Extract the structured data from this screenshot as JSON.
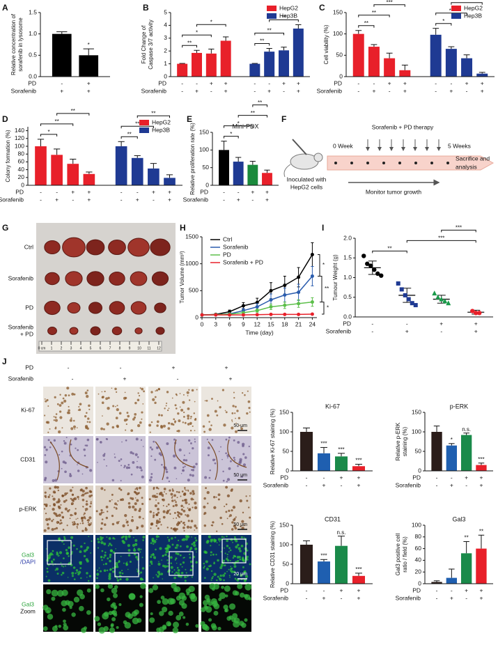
{
  "chart_data": [
    {
      "type": "bar",
      "panel": "A",
      "ylabel": [
        "Relative concentration of",
        "sorafenib in lysosome"
      ],
      "ylim": [
        0,
        1.5
      ],
      "yticks": [
        {
          "value": 0,
          "label": "0.0"
        },
        0.5,
        {
          "value": 1,
          "label": "1.0"
        },
        1.5
      ],
      "series": [
        {
          "values": [
            1.0,
            0.5
          ],
          "errors": [
            0.05,
            0.15
          ],
          "colors": [
            "#000000",
            "#000000"
          ]
        }
      ],
      "conditions": [
        {
          "name": "PD",
          "values": [
            "-",
            "+"
          ]
        },
        {
          "name": "Sorafenib",
          "values": [
            "+",
            "+"
          ]
        }
      ],
      "annotations": [
        {
          "bars": [
            1
          ],
          "text": "*"
        }
      ]
    },
    {
      "type": "bar",
      "panel": "B",
      "ylabel": [
        "Fold Change of",
        "Caspase 3/7 activity"
      ],
      "ylim": [
        0,
        5
      ],
      "yticks": [
        0,
        1,
        2,
        3,
        4,
        5
      ],
      "legend": "upper right",
      "series": [
        {
          "name": "HepG2",
          "color": "#e8202a",
          "values": [
            1.0,
            1.85,
            1.8,
            2.8
          ],
          "errors": [
            0.03,
            0.2,
            0.35,
            0.3
          ]
        },
        {
          "name": "Hep3B",
          "color": "#1f3a93",
          "values": [
            1.0,
            1.95,
            2.05,
            3.75
          ],
          "errors": [
            0.03,
            0.25,
            0.25,
            0.3
          ]
        }
      ],
      "conditions": [
        {
          "name": "PD",
          "values": [
            "-",
            "-",
            "+",
            "+"
          ]
        },
        {
          "name": "Sorafenib",
          "values": [
            "-",
            "+",
            "-",
            "+"
          ]
        }
      ],
      "annotations": [
        {
          "series": 0,
          "bars": [
            0,
            1
          ],
          "text": "**"
        },
        {
          "series": 0,
          "bars": [
            0,
            2
          ],
          "text": "*"
        },
        {
          "series": 0,
          "bars": [
            1,
            3
          ],
          "text": "*"
        },
        {
          "series": 1,
          "bars": [
            0,
            1
          ],
          "text": "**"
        },
        {
          "series": 1,
          "bars": [
            0,
            2
          ],
          "text": "**"
        },
        {
          "series": 1,
          "bars": [
            1,
            3
          ],
          "text": "**"
        }
      ]
    },
    {
      "type": "bar",
      "panel": "C",
      "ylabel": [
        "Cell viability (%)"
      ],
      "ylim": [
        0,
        150
      ],
      "yticks": [
        0,
        50,
        100,
        150
      ],
      "legend": "upper right",
      "series": [
        {
          "name": "HepG2",
          "color": "#e8202a",
          "values": [
            100,
            70,
            43,
            15
          ],
          "errors": [
            8,
            5,
            12,
            12
          ]
        },
        {
          "name": "Hep3B",
          "color": "#1f3a93",
          "values": [
            98,
            65,
            43,
            7
          ],
          "errors": [
            15,
            5,
            8,
            3
          ]
        }
      ],
      "conditions": [
        {
          "name": "PD",
          "values": [
            "-",
            "-",
            "+",
            "+"
          ]
        },
        {
          "name": "Sorafenib",
          "values": [
            "-",
            "+",
            "-",
            "+"
          ]
        }
      ],
      "annotations": [
        {
          "series": 0,
          "bars": [
            0,
            1
          ],
          "text": "**"
        },
        {
          "series": 0,
          "bars": [
            0,
            2
          ],
          "text": "**"
        },
        {
          "series": 0,
          "bars": [
            1,
            3
          ],
          "text": "***"
        },
        {
          "series": 1,
          "bars": [
            0,
            1
          ],
          "text": "*"
        },
        {
          "series": 1,
          "bars": [
            0,
            2
          ],
          "text": "**"
        },
        {
          "series": 1,
          "bars": [
            1,
            3
          ],
          "text": "***"
        }
      ]
    },
    {
      "type": "bar",
      "panel": "D",
      "ylabel": [
        "Colony formation (%)"
      ],
      "ylim": [
        0,
        150
      ],
      "yticks": [
        0,
        20,
        40,
        60,
        80,
        100,
        120,
        140
      ],
      "legend": "upper right",
      "series": [
        {
          "name": "HepG2",
          "color": "#e8202a",
          "values": [
            100,
            78,
            55,
            29
          ],
          "errors": [
            18,
            15,
            12,
            5
          ]
        },
        {
          "name": "Hep3B",
          "color": "#1f3a93",
          "values": [
            100,
            70,
            43,
            19
          ],
          "errors": [
            12,
            6,
            13,
            8
          ]
        }
      ],
      "conditions": [
        {
          "name": "PD",
          "values": [
            "-",
            "-",
            "+",
            "+"
          ]
        },
        {
          "name": "Sorafenib",
          "values": [
            "-",
            "+",
            "-",
            "+"
          ]
        }
      ],
      "annotations": [
        {
          "series": 0,
          "bars": [
            0,
            1
          ],
          "text": "*"
        },
        {
          "series": 0,
          "bars": [
            0,
            2
          ],
          "text": "**"
        },
        {
          "series": 0,
          "bars": [
            1,
            3
          ],
          "text": "**"
        },
        {
          "series": 1,
          "bars": [
            0,
            1
          ],
          "text": "**"
        },
        {
          "series": 1,
          "bars": [
            0,
            2
          ],
          "text": "**"
        },
        {
          "series": 1,
          "bars": [
            1,
            3
          ],
          "text": "**"
        }
      ]
    },
    {
      "type": "bar",
      "panel": "E",
      "title": "Mini-PDX",
      "ylabel": [
        "Relative proliferation rate (%)"
      ],
      "ylim": [
        0,
        150
      ],
      "yticks": [
        0,
        50,
        100,
        150
      ],
      "series": [
        {
          "values": [
            100,
            67,
            58,
            35
          ],
          "errors": [
            25,
            12,
            10,
            8
          ],
          "colors": [
            "#000000",
            "#1f3a93",
            "#1a8a3c",
            "#e8202a"
          ]
        }
      ],
      "conditions": [
        {
          "name": "PD",
          "values": [
            "-",
            "-",
            "+",
            "+"
          ]
        },
        {
          "name": "Sorafenib",
          "values": [
            "-",
            "+",
            "-",
            "+"
          ]
        }
      ],
      "annotations": [
        {
          "bars": [
            0,
            1
          ],
          "text": "*"
        },
        {
          "bars": [
            0,
            2
          ],
          "text": "*"
        },
        {
          "bars": [
            1,
            3
          ],
          "text": "**"
        },
        {
          "bars": [
            2,
            3
          ],
          "text": "**"
        }
      ]
    },
    {
      "type": "line",
      "panel": "H",
      "xlabel": "Time (day)",
      "ylabel": [
        "Tumor Volume (mm³)"
      ],
      "x": [
        0,
        3,
        6,
        9,
        12,
        15,
        18,
        21,
        24
      ],
      "xlim": [
        0,
        25
      ],
      "xticks": [
        0,
        3,
        6,
        9,
        12,
        15,
        18,
        21,
        24
      ],
      "ylim": [
        0,
        1500
      ],
      "yticks": [
        0,
        500,
        1000,
        1500
      ],
      "legend": "upper left",
      "series": [
        {
          "name": "Ctrl",
          "color": "#000000",
          "values": [
            50,
            60,
            110,
            220,
            280,
            500,
            600,
            750,
            1170
          ],
          "errors": [
            10,
            15,
            30,
            60,
            80,
            150,
            170,
            180,
            220
          ]
        },
        {
          "name": "Sorafenib",
          "color": "#2a5cad",
          "values": [
            50,
            55,
            70,
            130,
            200,
            330,
            420,
            470,
            770
          ],
          "errors": [
            10,
            12,
            20,
            40,
            60,
            110,
            130,
            150,
            180
          ]
        },
        {
          "name": "PD",
          "color": "#5cbf4a",
          "values": [
            50,
            55,
            65,
            90,
            130,
            200,
            230,
            260,
            290
          ],
          "errors": [
            10,
            10,
            15,
            20,
            30,
            50,
            60,
            70,
            80
          ]
        },
        {
          "name": "Sorafenib + PD",
          "color": "#e8202a",
          "values": [
            50,
            50,
            50,
            50,
            55,
            60,
            60,
            60,
            65
          ],
          "errors": [
            5,
            5,
            5,
            5,
            5,
            8,
            8,
            8,
            10
          ]
        }
      ],
      "annotations": [
        {
          "series": [
            0,
            1
          ],
          "text": "*"
        },
        {
          "series": [
            1,
            2
          ],
          "text": "**"
        },
        {
          "series": [
            2,
            3
          ],
          "text": "*"
        }
      ]
    },
    {
      "type": "scatter",
      "panel": "I",
      "ylabel": [
        "Tumour Weight (g)"
      ],
      "ylim": [
        0,
        2
      ],
      "yticks": [
        {
          "value": 0,
          "label": "0.0"
        },
        0.5,
        {
          "value": 1,
          "label": "1.0"
        },
        1.5,
        {
          "value": 2,
          "label": "2.0"
        }
      ],
      "series": [
        {
          "color": "#000000",
          "marker": "circle",
          "values": [
            1.55,
            1.35,
            1.3,
            1.2,
            1.1,
            1.05
          ],
          "mean": 1.25,
          "error": 0.17
        },
        {
          "color": "#1f3a93",
          "marker": "square",
          "values": [
            0.85,
            0.7,
            0.55,
            0.45,
            0.35,
            0.3
          ],
          "mean": 0.55,
          "error": 0.18
        },
        {
          "color": "#1a9a4a",
          "marker": "triangle",
          "values": [
            0.6,
            0.5,
            0.45,
            0.4,
            0.35
          ],
          "mean": 0.45,
          "error": 0.1
        },
        {
          "color": "#e8202a",
          "marker": "circle",
          "values": [
            0.15,
            0.1,
            0.1
          ],
          "mean": 0.12,
          "error": 0.05
        }
      ],
      "conditions": [
        {
          "name": "PD",
          "values": [
            "-",
            "-",
            "+",
            "+"
          ]
        },
        {
          "name": "Sorafenib",
          "values": [
            "-",
            "+",
            "-",
            "+"
          ]
        }
      ],
      "annotations": [
        {
          "bars": [
            0,
            1
          ],
          "text": "**"
        },
        {
          "bars": [
            1,
            3
          ],
          "text": "***"
        },
        {
          "bars": [
            2,
            3
          ],
          "text": "***"
        }
      ]
    },
    {
      "type": "bar",
      "title": "Ki-67",
      "ylabel": [
        "Relative Ki-67 staining (%)"
      ],
      "ylim": [
        0,
        150
      ],
      "yticks": [
        0,
        50,
        100,
        150
      ],
      "series": [
        {
          "values": [
            100,
            45,
            37,
            12
          ],
          "errors": [
            10,
            15,
            8,
            5
          ],
          "colors": [
            "#2b1d1a",
            "#1f5fb0",
            "#1a8a4a",
            "#e8202a"
          ]
        }
      ],
      "conditions": [
        {
          "name": "PD",
          "values": [
            "-",
            "-",
            "+",
            "+"
          ]
        },
        {
          "name": "Sorafenib",
          "values": [
            "-",
            "+",
            "-",
            "+"
          ]
        }
      ],
      "annotations": [
        {
          "bars": [
            1
          ],
          "text": "***"
        },
        {
          "bars": [
            2
          ],
          "text": "***"
        },
        {
          "bars": [
            3
          ],
          "text": "***"
        }
      ]
    },
    {
      "type": "bar",
      "title": "p-ERK",
      "ylabel": [
        "Relative p-ERK",
        "staining (%)"
      ],
      "ylim": [
        0,
        150
      ],
      "yticks": [
        0,
        50,
        100,
        150
      ],
      "series": [
        {
          "values": [
            100,
            65,
            92,
            15
          ],
          "errors": [
            15,
            5,
            5,
            5
          ],
          "colors": [
            "#2b1d1a",
            "#1f5fb0",
            "#1a8a4a",
            "#e8202a"
          ]
        }
      ],
      "conditions": [
        {
          "name": "PD",
          "values": [
            "-",
            "-",
            "+",
            "+"
          ]
        },
        {
          "name": "Sorafenib",
          "values": [
            "-",
            "+",
            "-",
            "+"
          ]
        }
      ],
      "annotations": [
        {
          "bars": [
            1
          ],
          "text": "*"
        },
        {
          "bars": [
            2
          ],
          "text": "n.s."
        },
        {
          "bars": [
            3
          ],
          "text": "***"
        }
      ]
    },
    {
      "type": "bar",
      "title": "CD31",
      "ylabel": [
        "Relative CD31 staining (%)"
      ],
      "ylim": [
        0,
        150
      ],
      "yticks": [
        0,
        50,
        100,
        150
      ],
      "series": [
        {
          "values": [
            100,
            57,
            97,
            20
          ],
          "errors": [
            10,
            5,
            25,
            7
          ],
          "colors": [
            "#2b1d1a",
            "#1f5fb0",
            "#1a8a4a",
            "#e8202a"
          ]
        }
      ],
      "conditions": [
        {
          "name": "PD",
          "values": [
            "-",
            "-",
            "+",
            "+"
          ]
        },
        {
          "name": "Sorafenib",
          "values": [
            "-",
            "+",
            "-",
            "+"
          ]
        }
      ],
      "annotations": [
        {
          "bars": [
            1
          ],
          "text": "***"
        },
        {
          "bars": [
            2
          ],
          "text": "n.s."
        },
        {
          "bars": [
            3
          ],
          "text": "***"
        }
      ]
    },
    {
      "type": "bar",
      "title": "Gal3",
      "ylabel": [
        "Gal3 positive cell",
        "ratio / field (%)"
      ],
      "ylim": [
        0,
        100
      ],
      "yticks": [
        0,
        20,
        40,
        60,
        80,
        100
      ],
      "series": [
        {
          "values": [
            3,
            10,
            52,
            60
          ],
          "errors": [
            2,
            15,
            20,
            23
          ],
          "colors": [
            "#2b1d1a",
            "#1f5fb0",
            "#1a8a4a",
            "#e8202a"
          ]
        }
      ],
      "conditions": [
        {
          "name": "PD",
          "values": [
            "-",
            "-",
            "+",
            "+"
          ]
        },
        {
          "name": "Sorafenib",
          "values": [
            "-",
            "+",
            "-",
            "+"
          ]
        }
      ],
      "annotations": [
        {
          "bars": [
            2
          ],
          "text": "**"
        },
        {
          "bars": [
            3
          ],
          "text": "**"
        }
      ]
    }
  ],
  "schematic": {
    "panel": "F",
    "therapy": "Sorafenib + PD therapy",
    "start": "0 Week",
    "end": "5 Weeks",
    "outcome": [
      "Sacrifice and",
      "analysis"
    ],
    "inoculation": [
      "Inoculated with",
      "HepG2 cells"
    ],
    "monitor": "Monitor tumor growth"
  },
  "tumor_photo": {
    "panel": "G",
    "rows": [
      [
        "Ctrl"
      ],
      [
        "Sorafenib"
      ],
      [
        "PD"
      ],
      [
        "Sorafenib",
        "+ PD"
      ]
    ],
    "ruler": [
      "0 cm",
      "1",
      "2",
      "3",
      "4",
      "5",
      "6",
      "7",
      "8",
      "9",
      "10",
      "11",
      "12"
    ]
  },
  "micrographs": {
    "panel": "J",
    "conditions": [
      {
        "name": "PD",
        "values": [
          "-",
          "-",
          "+",
          "+"
        ]
      },
      {
        "name": "Sorafenib",
        "values": [
          "-",
          "+",
          "-",
          "+"
        ]
      }
    ],
    "rows": [
      {
        "lines": [
          "Ki-67"
        ],
        "scale": "50 μm"
      },
      {
        "lines": [
          "CD31"
        ],
        "scale": "50 μm"
      },
      {
        "lines": [
          "p-ERK"
        ],
        "scale": "50 μm"
      },
      {
        "lines": [
          "Gal3",
          "/DAPI"
        ],
        "scale": "20 μm"
      },
      {
        "lines": [
          "Gal3",
          "Zoom"
        ]
      }
    ]
  }
}
